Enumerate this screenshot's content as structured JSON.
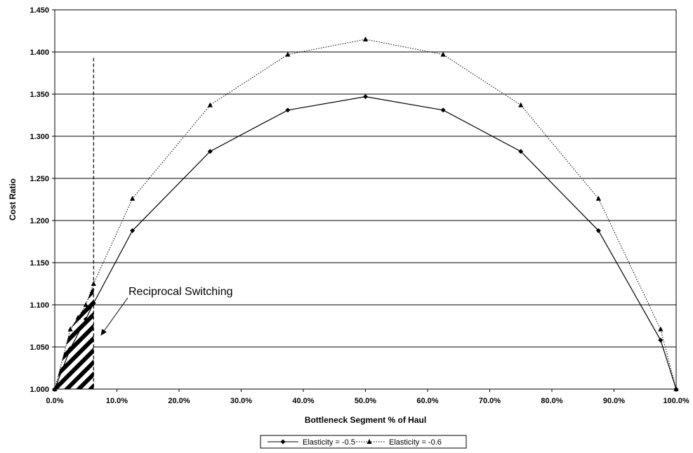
{
  "chart_data": {
    "type": "line",
    "xlabel": "Bottleneck Segment % of Haul",
    "ylabel": "Cost Ratio",
    "xlim": [
      0,
      100
    ],
    "ylim": [
      1.0,
      1.45
    ],
    "x_ticks": [
      "0.0%",
      "10.0%",
      "20.0%",
      "30.0%",
      "40.0%",
      "50.0%",
      "60.0%",
      "70.0%",
      "80.0%",
      "90.0%",
      "100.0%"
    ],
    "y_ticks": [
      "1.000",
      "1.050",
      "1.100",
      "1.150",
      "1.200",
      "1.250",
      "1.300",
      "1.350",
      "1.400",
      "1.450"
    ],
    "grid": "horizontal",
    "legend_position": "bottom",
    "series": [
      {
        "name": "Elasticity = -0.5",
        "line_style": "solid",
        "marker": "diamond",
        "color": "#000000",
        "x": [
          0,
          2.5,
          5,
          6.25,
          12.5,
          25,
          37.5,
          50,
          62.5,
          75,
          87.5,
          97.5,
          100
        ],
        "y": [
          1.0,
          1.048,
          1.083,
          1.102,
          1.188,
          1.282,
          1.331,
          1.347,
          1.331,
          1.282,
          1.188,
          1.058,
          1.0
        ]
      },
      {
        "name": "Elasticity = -0.6",
        "line_style": "dotted",
        "marker": "triangle",
        "color": "#000000",
        "x": [
          0,
          2.5,
          3.75,
          5,
          6.25,
          12.5,
          25,
          37.5,
          50,
          62.5,
          75,
          87.5,
          97.5,
          100
        ],
        "y": [
          1.0,
          1.071,
          1.085,
          1.1,
          1.125,
          1.226,
          1.337,
          1.397,
          1.415,
          1.397,
          1.337,
          1.226,
          1.071,
          1.0
        ]
      }
    ],
    "annotations": [
      {
        "text": "Reciprocal Switching",
        "region_x": [
          0,
          6.25
        ]
      }
    ]
  }
}
